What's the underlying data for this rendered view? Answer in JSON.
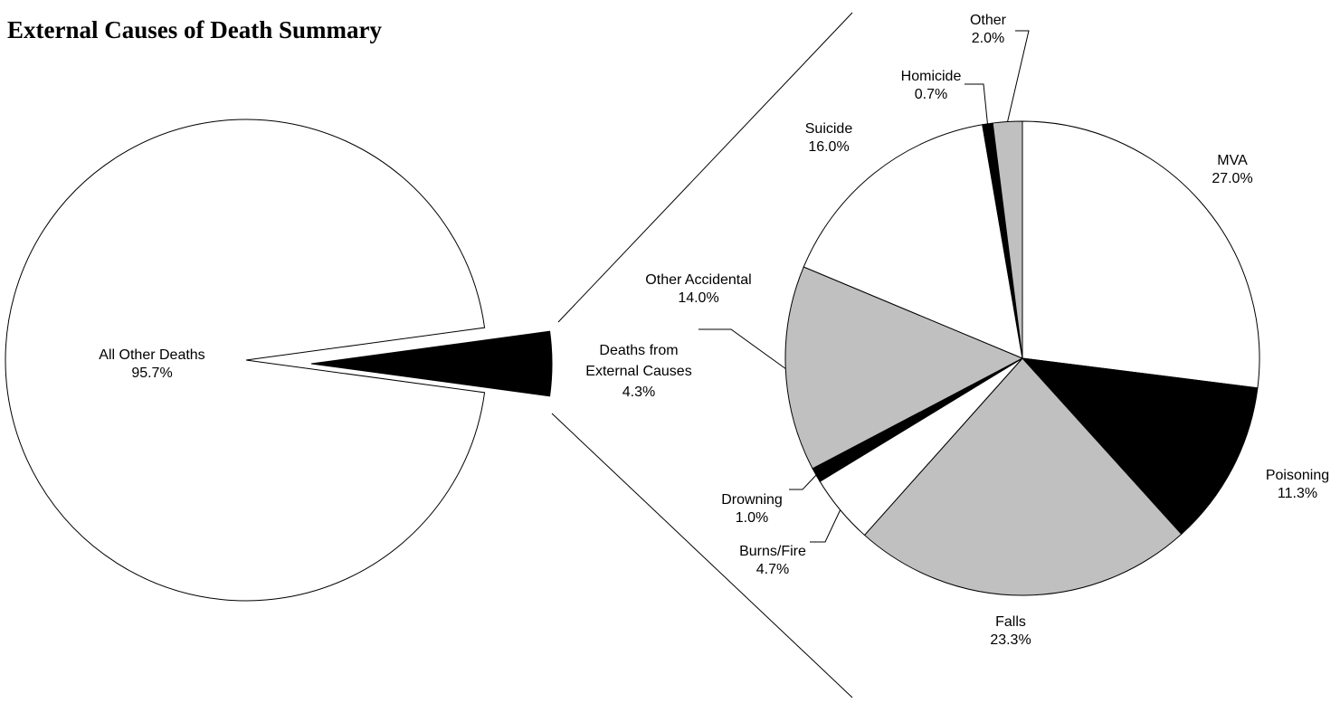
{
  "chart_data": {
    "type": "pie",
    "title": "External Causes of Death Summary",
    "main_pie": {
      "slices": [
        {
          "label": "All Other Deaths",
          "value": 95.7,
          "display": "95.7%",
          "color": "#ffffff"
        },
        {
          "label": "Deaths from External Causes",
          "value": 4.3,
          "display": "4.3%",
          "color": "#000000",
          "exploded": true
        }
      ]
    },
    "breakdown_pie": {
      "slices": [
        {
          "label": "MVA",
          "value": 27.0,
          "display": "27.0%",
          "color": "#ffffff"
        },
        {
          "label": "Poisoning",
          "value": 11.3,
          "display": "11.3%",
          "color": "#000000"
        },
        {
          "label": "Falls",
          "value": 23.3,
          "display": "23.3%",
          "color": "#c0c0c0"
        },
        {
          "label": "Burns/Fire",
          "value": 4.7,
          "display": "4.7%",
          "color": "#ffffff"
        },
        {
          "label": "Drowning",
          "value": 1.0,
          "display": "1.0%",
          "color": "#000000"
        },
        {
          "label": "Other Accidental",
          "value": 14.0,
          "display": "14.0%",
          "color": "#c0c0c0"
        },
        {
          "label": "Suicide",
          "value": 16.0,
          "display": "16.0%",
          "color": "#ffffff"
        },
        {
          "label": "Homicide",
          "value": 0.7,
          "display": "0.7%",
          "color": "#000000"
        },
        {
          "label": "Other",
          "value": 2.0,
          "display": "2.0%",
          "color": "#c0c0c0"
        }
      ]
    },
    "legend": "none"
  }
}
